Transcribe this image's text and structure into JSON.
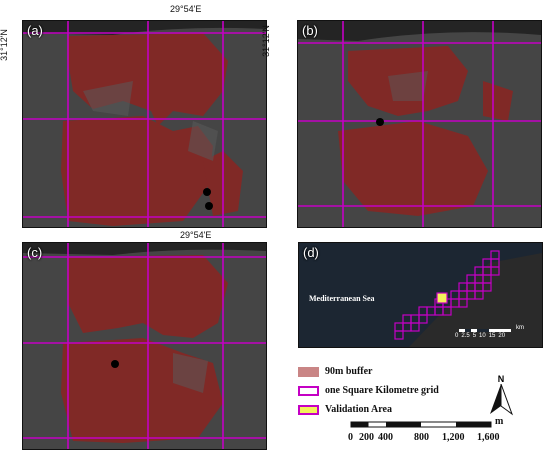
{
  "panels": [
    {
      "label": "(a)"
    },
    {
      "label": "(b)"
    },
    {
      "label": "(c)"
    },
    {
      "label": "(d)",
      "sea_label": "Mediterranean Sea",
      "inset_scale_ticks": [
        "0",
        "2.5",
        "5",
        "10",
        "15",
        "20"
      ],
      "inset_scale_unit": "km"
    }
  ],
  "coordinates": {
    "lon_top": "29°54'E",
    "lon_bottom": "29°54'E",
    "lat_left": "31°12'N",
    "lat_right": "31°12'N"
  },
  "legend": {
    "items": [
      {
        "label": "90m buffer",
        "swatch_fill": "#c98585",
        "swatch_border": "#c98585"
      },
      {
        "label": "one Square Kilometre grid",
        "swatch_fill": "#ffffff",
        "swatch_border": "#c400c4"
      },
      {
        "label": "Validation Area",
        "swatch_fill": "#f4f25a",
        "swatch_border": "#c400c4"
      }
    ]
  },
  "north_arrow": {
    "letter": "N"
  },
  "scale_bar": {
    "unit": "m",
    "ticks": [
      "0",
      "200",
      "400",
      "800",
      "1,200",
      "1,600"
    ]
  },
  "colors": {
    "buffer": "#8e2320",
    "grid": "#c400c4",
    "imagery_dark": "#3c3c3c",
    "sea": "#1c2632"
  }
}
